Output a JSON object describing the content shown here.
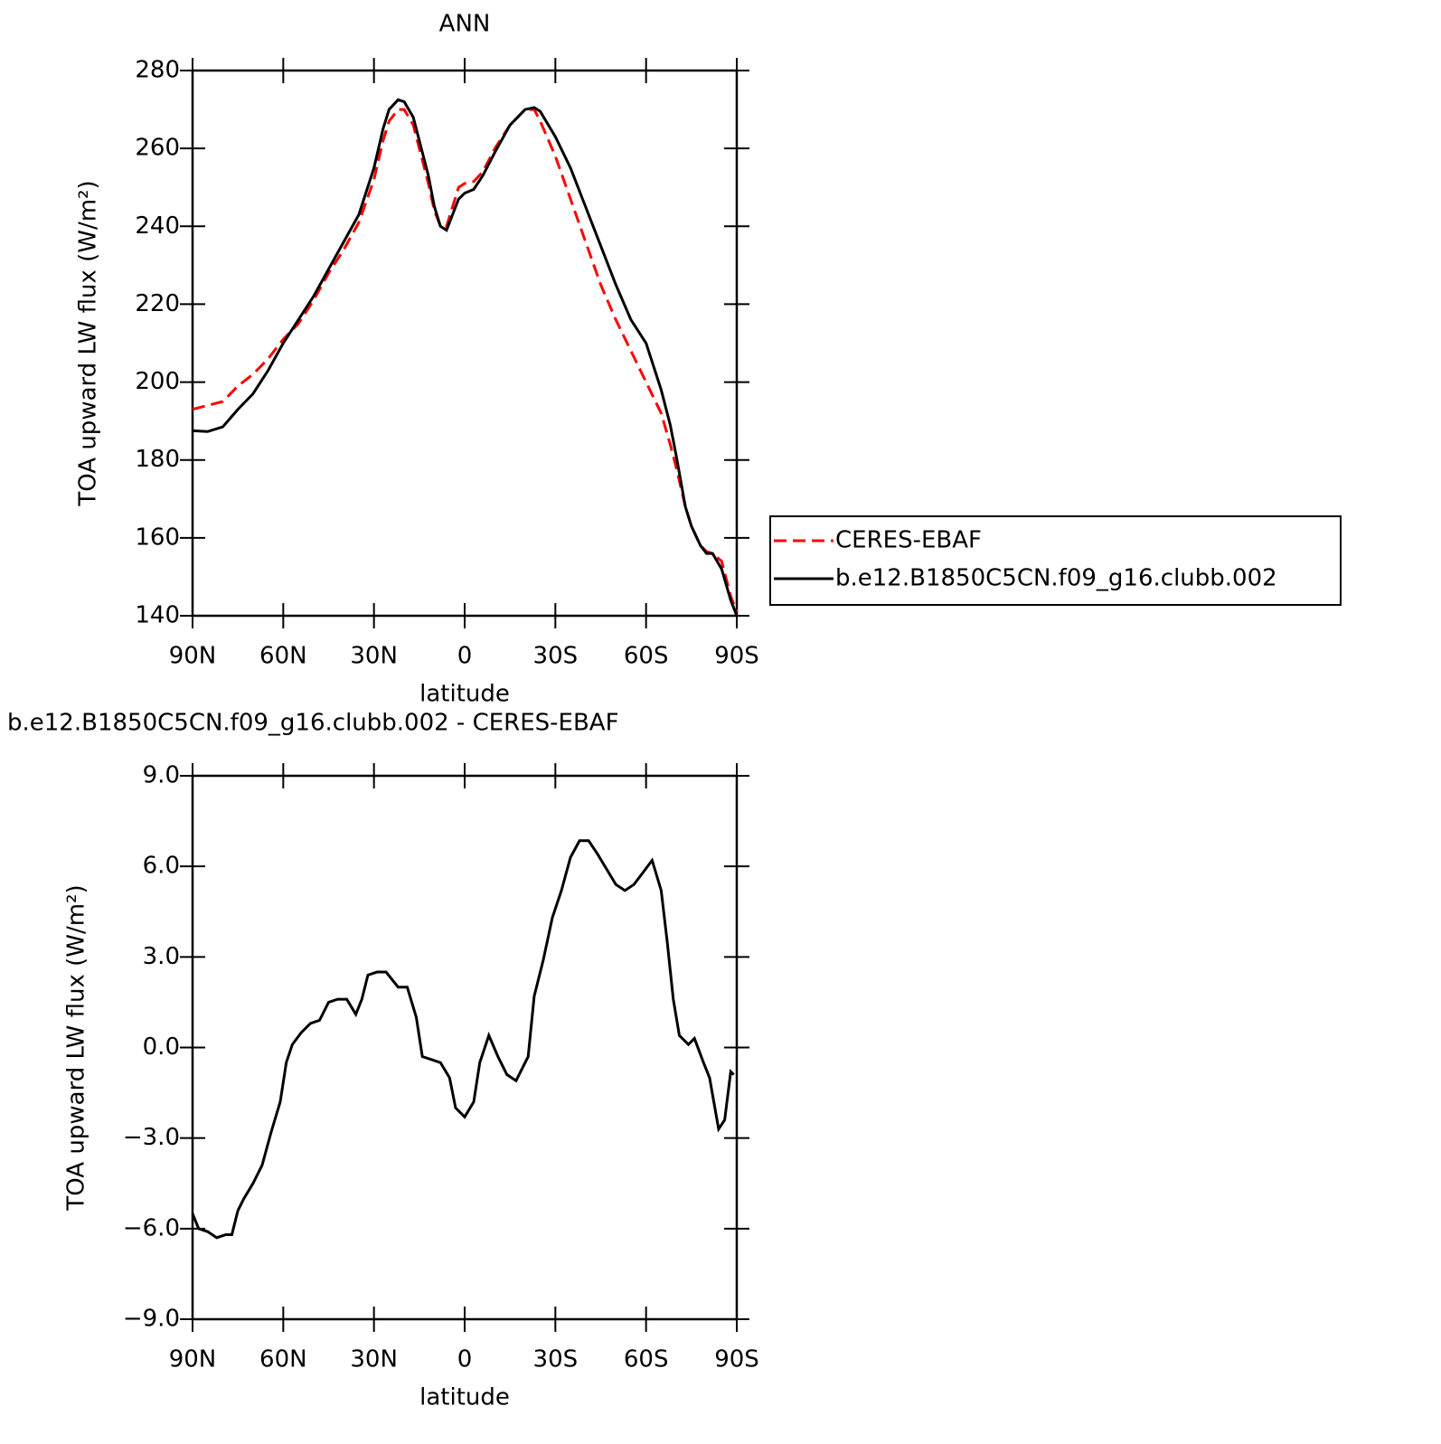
{
  "chart_data": [
    {
      "type": "line",
      "title": "ANN",
      "xlabel": "latitude",
      "ylabel": "TOA upward LW flux (W/m²)",
      "x": [
        90,
        85,
        80,
        75,
        70,
        65,
        60,
        55,
        50,
        45,
        40,
        35,
        30,
        27,
        25,
        22,
        20,
        17,
        15,
        12,
        10,
        8,
        6,
        4,
        2,
        0,
        -3,
        -6,
        -10,
        -15,
        -20,
        -23,
        -25,
        -30,
        -35,
        -40,
        -45,
        -50,
        -55,
        -60,
        -65,
        -68,
        -70,
        -73,
        -75,
        -78,
        -80,
        -82,
        -85,
        -88,
        -90
      ],
      "xlim": [
        90,
        -90
      ],
      "xticks": [
        {
          "value": 90,
          "label": "90N"
        },
        {
          "value": 60,
          "label": "60N"
        },
        {
          "value": 30,
          "label": "30N"
        },
        0,
        {
          "value": -30,
          "label": "30S"
        },
        {
          "value": -60,
          "label": "60S"
        },
        {
          "value": -90,
          "label": "90S"
        }
      ],
      "ylim": [
        140,
        280
      ],
      "yticks": [
        140,
        160,
        180,
        200,
        220,
        240,
        260,
        280
      ],
      "legend": "right",
      "series": [
        {
          "name": "CERES-EBAF",
          "color": "#ff0000",
          "style": "dashed",
          "values": [
            193,
            194,
            195,
            199,
            202,
            206,
            211,
            215,
            221,
            228,
            234,
            241,
            252,
            262,
            267,
            270,
            270,
            266,
            260,
            251,
            244,
            240,
            240,
            245,
            250,
            251,
            251.5,
            254,
            260,
            266,
            270,
            270,
            267,
            258,
            247,
            236,
            225,
            216,
            208,
            200,
            192,
            184,
            178,
            168,
            163,
            158,
            156.5,
            156,
            154,
            145,
            141
          ]
        },
        {
          "name": "b.e12.B1850C5CN.f09_g16.clubb.002",
          "color": "#000000",
          "style": "solid",
          "values": [
            187.5,
            187.3,
            188.5,
            193,
            197,
            203,
            210,
            216,
            222,
            229,
            236,
            243,
            255,
            265,
            270,
            272.5,
            272,
            268,
            262,
            253,
            245,
            240,
            239,
            243,
            247,
            248.5,
            249.5,
            253,
            259,
            266,
            270,
            270.5,
            269.5,
            263,
            255,
            245,
            235,
            225,
            216,
            210,
            198,
            189,
            181,
            168,
            163,
            158,
            156,
            156,
            152,
            144,
            140
          ]
        }
      ]
    },
    {
      "type": "line",
      "title": "b.e12.B1850C5CN.f09_g16.clubb.002 - CERES-EBAF",
      "xlabel": "latitude",
      "ylabel": "TOA upward LW flux (W/m²)",
      "x": [
        90,
        88,
        85,
        82,
        79,
        77,
        75,
        73,
        70,
        67,
        64,
        61,
        59,
        57,
        54,
        51,
        48,
        45,
        42,
        39,
        36,
        34,
        32,
        29,
        26,
        22,
        19,
        16,
        14,
        11,
        8,
        5,
        3,
        0,
        -3,
        -5,
        -8,
        -11,
        -14,
        -17,
        -21,
        -23,
        -26,
        -29,
        -32,
        -35,
        -38,
        -41,
        -44,
        -47,
        -50,
        -53,
        -56,
        -59,
        -62,
        -65,
        -67,
        -69,
        -71,
        -74,
        -76,
        -79,
        -81,
        -84,
        -86,
        -88,
        -89
      ],
      "xlim": [
        90,
        -90
      ],
      "xticks": [
        {
          "value": 90,
          "label": "90N"
        },
        {
          "value": 60,
          "label": "60N"
        },
        {
          "value": 30,
          "label": "30N"
        },
        0,
        {
          "value": -30,
          "label": "30S"
        },
        {
          "value": -60,
          "label": "60S"
        },
        {
          "value": -90,
          "label": "90S"
        }
      ],
      "ylim": [
        -9,
        9
      ],
      "yticks": [
        {
          "value": -9,
          "label": "−9.0"
        },
        {
          "value": -6,
          "label": "−6.0"
        },
        {
          "value": -3,
          "label": "−3.0"
        },
        {
          "value": 0,
          "label": "0.0"
        },
        {
          "value": 3,
          "label": "3.0"
        },
        {
          "value": 6,
          "label": "6.0"
        },
        {
          "value": 9,
          "label": "9.0"
        }
      ],
      "series": [
        {
          "color": "#000000",
          "style": "solid",
          "values": [
            -5.5,
            -6.0,
            -6.1,
            -6.3,
            -6.2,
            -6.2,
            -5.4,
            -5.0,
            -4.5,
            -3.9,
            -2.8,
            -1.8,
            -0.5,
            0.1,
            0.5,
            0.8,
            0.9,
            1.5,
            1.6,
            1.6,
            1.1,
            1.6,
            2.4,
            2.5,
            2.5,
            2.0,
            2.0,
            1.0,
            -0.3,
            -0.4,
            -0.5,
            -1.0,
            -2.0,
            -2.3,
            -1.8,
            -0.5,
            0.4,
            -0.3,
            -0.9,
            -1.1,
            -0.3,
            1.7,
            2.9,
            4.3,
            5.2,
            6.3,
            6.85,
            6.85,
            6.4,
            5.9,
            5.4,
            5.2,
            5.4,
            5.8,
            6.2,
            5.2,
            3.5,
            1.6,
            0.4,
            0.1,
            0.3,
            -0.5,
            -1.0,
            -2.7,
            -2.4,
            -0.8,
            -0.9
          ]
        }
      ]
    }
  ]
}
